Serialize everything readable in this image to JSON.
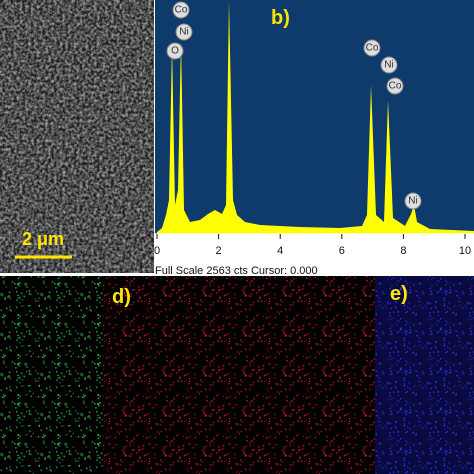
{
  "sem": {
    "scale_bar": "2 μm"
  },
  "spectrum": {
    "label": "b)",
    "xticks": [
      0,
      2,
      4,
      6,
      8,
      10
    ],
    "footer": "Full Scale 2563 cts Cursor: 0.000",
    "peak_labels": [
      "Co",
      "Ni",
      "O",
      "Co",
      "Ni",
      "Co",
      "Ni"
    ]
  },
  "maps": [
    {
      "label": "d)"
    },
    {
      "label": "e)"
    }
  ]
}
